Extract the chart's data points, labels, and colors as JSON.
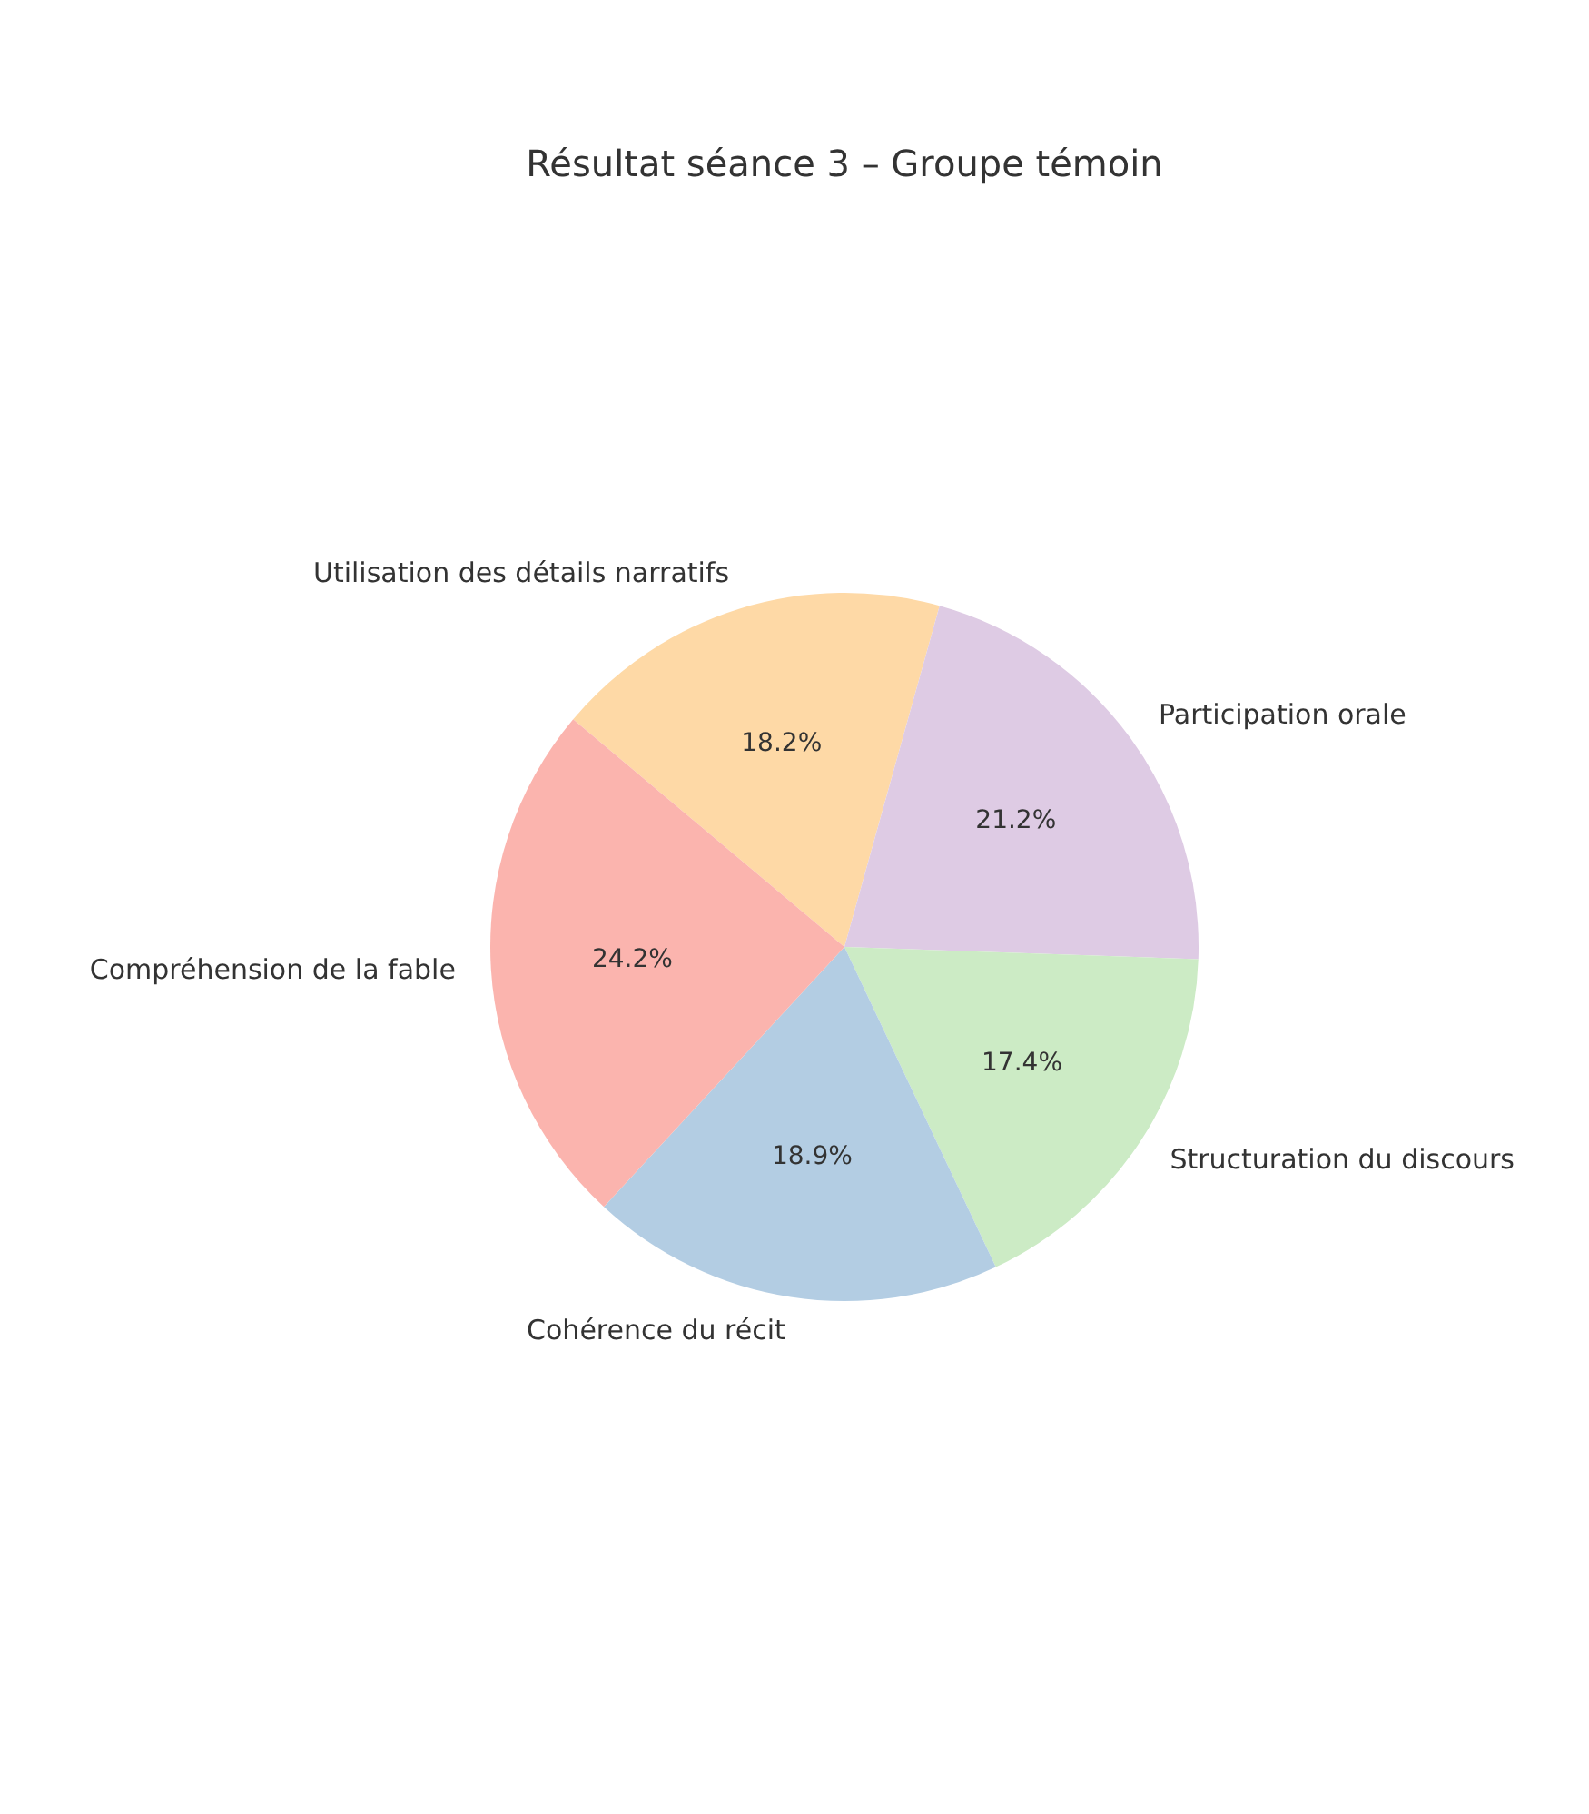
{
  "chart_data": {
    "type": "pie",
    "title": "Résultat séance 3 – Groupe témoin",
    "categories": [
      "Utilisation des détails narratifs",
      "Participation orale",
      "Structuration du discours",
      "Cohérence du récit",
      "Compréhension de la fable"
    ],
    "values": [
      18.2,
      21.2,
      17.4,
      18.9,
      24.2
    ],
    "value_labels": [
      "18.2%",
      "21.2%",
      "17.4%",
      "18.9%",
      "24.2%"
    ],
    "colors": [
      "#fed9a6",
      "#decbe4",
      "#ccebc5",
      "#b3cde3",
      "#fbb4ae"
    ],
    "legend": false
  }
}
